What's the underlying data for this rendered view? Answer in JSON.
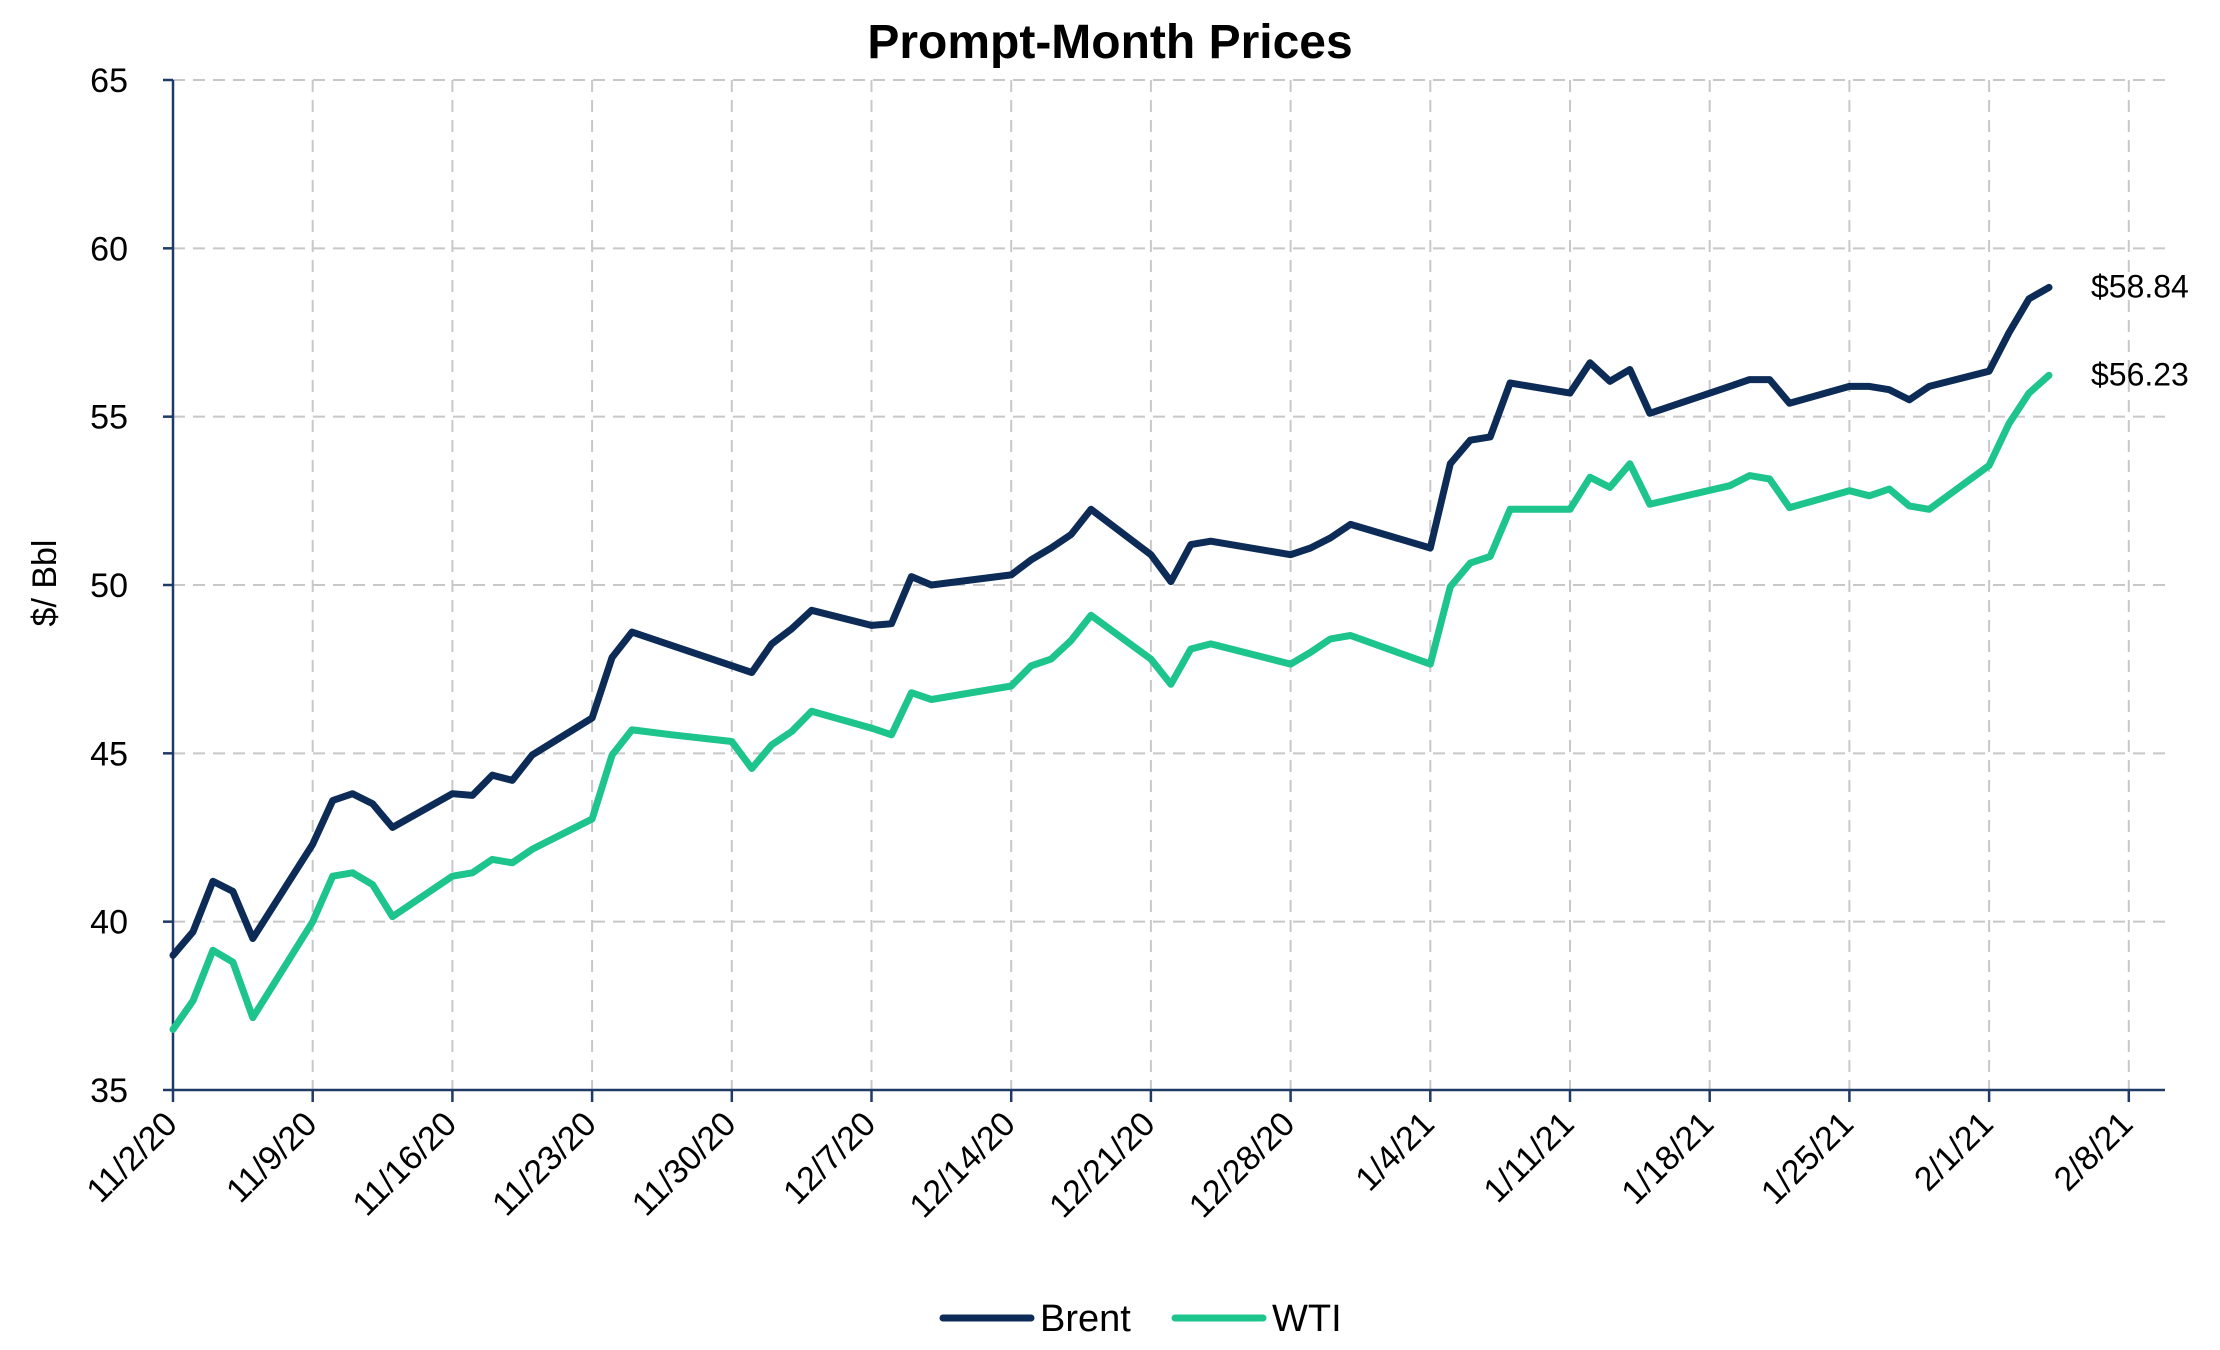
{
  "chart_data": {
    "type": "line",
    "title": "Prompt-Month Prices",
    "ylabel": "$/ Bbl",
    "xlabel": "",
    "ylim": [
      35,
      65
    ],
    "yticks": [
      35,
      40,
      45,
      50,
      55,
      60,
      65
    ],
    "xlim": [
      "2020-11-02",
      "2021-02-08"
    ],
    "xtick_labels": [
      "11/2/20",
      "11/9/20",
      "11/16/20",
      "11/23/20",
      "11/30/20",
      "12/7/20",
      "12/14/20",
      "12/21/20",
      "12/28/20",
      "1/4/21",
      "1/11/21",
      "1/18/21",
      "1/25/21",
      "2/1/21",
      "2/8/21"
    ],
    "xtick_dates": [
      "2020-11-02",
      "2020-11-09",
      "2020-11-16",
      "2020-11-23",
      "2020-11-30",
      "2020-12-07",
      "2020-12-14",
      "2020-12-21",
      "2020-12-28",
      "2021-01-04",
      "2021-01-11",
      "2021-01-18",
      "2021-01-25",
      "2021-02-01",
      "2021-02-08"
    ],
    "grid": true,
    "legend_position": "bottom-center",
    "series": [
      {
        "name": "Brent",
        "color": "#0d2b57",
        "end_label": "$58.84",
        "points": [
          [
            "2020-11-02",
            39.0
          ],
          [
            "2020-11-03",
            39.7
          ],
          [
            "2020-11-04",
            41.2
          ],
          [
            "2020-11-05",
            40.9
          ],
          [
            "2020-11-06",
            39.5
          ],
          [
            "2020-11-09",
            42.3
          ],
          [
            "2020-11-10",
            43.6
          ],
          [
            "2020-11-11",
            43.8
          ],
          [
            "2020-11-12",
            43.5
          ],
          [
            "2020-11-13",
            42.8
          ],
          [
            "2020-11-16",
            43.8
          ],
          [
            "2020-11-17",
            43.75
          ],
          [
            "2020-11-18",
            44.35
          ],
          [
            "2020-11-19",
            44.2
          ],
          [
            "2020-11-20",
            44.95
          ],
          [
            "2020-11-23",
            46.05
          ],
          [
            "2020-11-24",
            47.85
          ],
          [
            "2020-11-25",
            48.6
          ],
          [
            "2020-12-01",
            47.4
          ],
          [
            "2020-12-02",
            48.25
          ],
          [
            "2020-12-03",
            48.7
          ],
          [
            "2020-12-04",
            49.25
          ],
          [
            "2020-12-07",
            48.8
          ],
          [
            "2020-12-08",
            48.85
          ],
          [
            "2020-12-09",
            50.25
          ],
          [
            "2020-12-10",
            50.0
          ],
          [
            "2020-12-14",
            50.3
          ],
          [
            "2020-12-15",
            50.75
          ],
          [
            "2020-12-16",
            51.1
          ],
          [
            "2020-12-17",
            51.5
          ],
          [
            "2020-12-18",
            52.25
          ],
          [
            "2020-12-21",
            50.9
          ],
          [
            "2020-12-22",
            50.1
          ],
          [
            "2020-12-23",
            51.2
          ],
          [
            "2020-12-24",
            51.3
          ],
          [
            "2020-12-28",
            50.9
          ],
          [
            "2020-12-29",
            51.1
          ],
          [
            "2020-12-30",
            51.4
          ],
          [
            "2020-12-31",
            51.8
          ],
          [
            "2021-01-04",
            51.1
          ],
          [
            "2021-01-05",
            53.6
          ],
          [
            "2021-01-06",
            54.3
          ],
          [
            "2021-01-07",
            54.4
          ],
          [
            "2021-01-08",
            56.0
          ],
          [
            "2021-01-11",
            55.7
          ],
          [
            "2021-01-12",
            56.6
          ],
          [
            "2021-01-13",
            56.05
          ],
          [
            "2021-01-14",
            56.4
          ],
          [
            "2021-01-15",
            55.1
          ],
          [
            "2021-01-19",
            55.9
          ],
          [
            "2021-01-20",
            56.1
          ],
          [
            "2021-01-21",
            56.1
          ],
          [
            "2021-01-22",
            55.4
          ],
          [
            "2021-01-25",
            55.9
          ],
          [
            "2021-01-26",
            55.9
          ],
          [
            "2021-01-27",
            55.8
          ],
          [
            "2021-01-28",
            55.5
          ],
          [
            "2021-01-29",
            55.9
          ],
          [
            "2021-02-01",
            56.35
          ],
          [
            "2021-02-02",
            57.5
          ],
          [
            "2021-02-03",
            58.5
          ],
          [
            "2021-02-04",
            58.84
          ]
        ]
      },
      {
        "name": "WTI",
        "color": "#1dc48b",
        "end_label": "$56.23",
        "points": [
          [
            "2020-11-02",
            36.8
          ],
          [
            "2020-11-03",
            37.65
          ],
          [
            "2020-11-04",
            39.15
          ],
          [
            "2020-11-05",
            38.8
          ],
          [
            "2020-11-06",
            37.15
          ],
          [
            "2020-11-09",
            40.0
          ],
          [
            "2020-11-10",
            41.35
          ],
          [
            "2020-11-11",
            41.45
          ],
          [
            "2020-11-12",
            41.1
          ],
          [
            "2020-11-13",
            40.15
          ],
          [
            "2020-11-16",
            41.35
          ],
          [
            "2020-11-17",
            41.45
          ],
          [
            "2020-11-18",
            41.85
          ],
          [
            "2020-11-19",
            41.75
          ],
          [
            "2020-11-20",
            42.15
          ],
          [
            "2020-11-23",
            43.05
          ],
          [
            "2020-11-24",
            44.95
          ],
          [
            "2020-11-25",
            45.7
          ],
          [
            "2020-11-27",
            45.55
          ],
          [
            "2020-11-30",
            45.35
          ],
          [
            "2020-12-01",
            44.55
          ],
          [
            "2020-12-02",
            45.25
          ],
          [
            "2020-12-03",
            45.65
          ],
          [
            "2020-12-04",
            46.25
          ],
          [
            "2020-12-07",
            45.75
          ],
          [
            "2020-12-08",
            45.55
          ],
          [
            "2020-12-09",
            46.8
          ],
          [
            "2020-12-10",
            46.6
          ],
          [
            "2020-12-14",
            47.0
          ],
          [
            "2020-12-15",
            47.6
          ],
          [
            "2020-12-16",
            47.8
          ],
          [
            "2020-12-17",
            48.35
          ],
          [
            "2020-12-18",
            49.1
          ],
          [
            "2020-12-21",
            47.8
          ],
          [
            "2020-12-22",
            47.05
          ],
          [
            "2020-12-23",
            48.1
          ],
          [
            "2020-12-24",
            48.25
          ],
          [
            "2020-12-28",
            47.65
          ],
          [
            "2020-12-29",
            48.0
          ],
          [
            "2020-12-30",
            48.4
          ],
          [
            "2020-12-31",
            48.5
          ],
          [
            "2021-01-04",
            47.65
          ],
          [
            "2021-01-05",
            49.95
          ],
          [
            "2021-01-06",
            50.65
          ],
          [
            "2021-01-07",
            50.85
          ],
          [
            "2021-01-08",
            52.25
          ],
          [
            "2021-01-11",
            52.25
          ],
          [
            "2021-01-12",
            53.2
          ],
          [
            "2021-01-13",
            52.9
          ],
          [
            "2021-01-14",
            53.6
          ],
          [
            "2021-01-15",
            52.4
          ],
          [
            "2021-01-19",
            52.95
          ],
          [
            "2021-01-20",
            53.25
          ],
          [
            "2021-01-21",
            53.15
          ],
          [
            "2021-01-22",
            52.3
          ],
          [
            "2021-01-25",
            52.8
          ],
          [
            "2021-01-26",
            52.65
          ],
          [
            "2021-01-27",
            52.85
          ],
          [
            "2021-01-28",
            52.35
          ],
          [
            "2021-01-29",
            52.25
          ],
          [
            "2021-02-01",
            53.55
          ],
          [
            "2021-02-02",
            54.8
          ],
          [
            "2021-02-03",
            55.7
          ],
          [
            "2021-02-04",
            56.23
          ]
        ]
      }
    ]
  }
}
